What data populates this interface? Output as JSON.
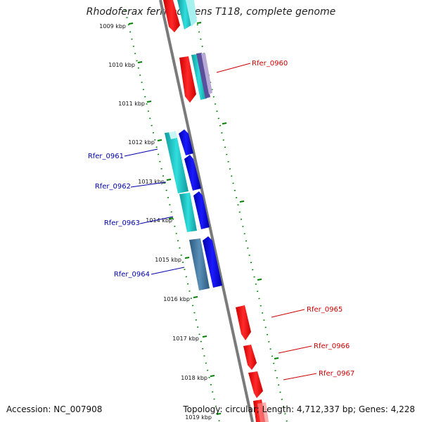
{
  "title": "Rhodoferax ferrireducens T118, complete genome",
  "footer": {
    "accession": "Accession: NC_007908",
    "genome_info": "Topology: circular; Length: 4,712,337 bp; Genes: 4,228"
  },
  "kbp_labels": [
    "1009 kbp",
    "1010 kbp",
    "1011 kbp",
    "1012 kbp",
    "1013 kbp",
    "1014 kbp",
    "1015 kbp",
    "1016 kbp",
    "1017 kbp",
    "1018 kbp",
    "1019 kbp"
  ],
  "gene_tags": {
    "forward": [
      "Rfer_0960",
      "Rfer_0965",
      "Rfer_0966",
      "Rfer_0967"
    ],
    "reverse": [
      "Rfer_0961",
      "Rfer_0962",
      "Rfer_0963",
      "Rfer_0964"
    ]
  },
  "colors": {
    "forward_cds": "#ff0000",
    "reverse_cds": "#0000ee",
    "cog_cyan": "#20c8c8",
    "cog_steel": "#4a7fa8",
    "backbone": "#808080",
    "ticks": "#008000",
    "forward_label": "#cc0000",
    "reverse_label": "#0000aa"
  }
}
